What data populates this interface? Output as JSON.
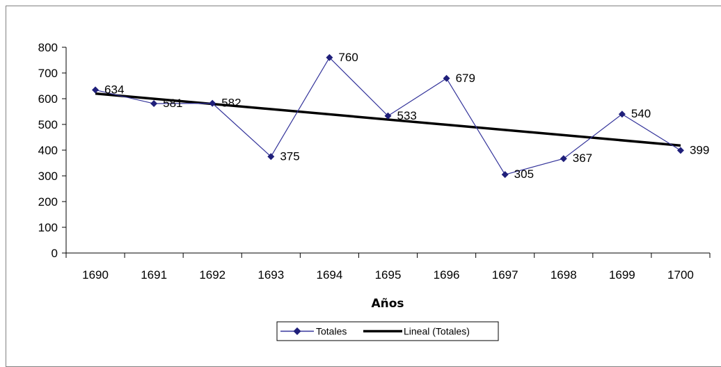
{
  "chart_data": {
    "type": "line",
    "title": "",
    "xlabel": "Años",
    "ylabel": "",
    "ylim": [
      0,
      800
    ],
    "yticks": [
      "0",
      "100",
      "200",
      "300",
      "400",
      "500",
      "600",
      "700",
      "800"
    ],
    "categories": [
      "1690",
      "1691",
      "1692",
      "1693",
      "1694",
      "1695",
      "1696",
      "1697",
      "1698",
      "1699",
      "1700"
    ],
    "series": [
      {
        "name": "Totales",
        "values": [
          634,
          581,
          582,
          375,
          760,
          533,
          679,
          305,
          367,
          540,
          399
        ],
        "color": "#33339a",
        "marker": "diamond",
        "marker_color": "#1f1f7a",
        "data_labels": [
          "634",
          "581",
          "582",
          "375",
          "760",
          "533",
          "679",
          "305",
          "367",
          "540",
          "399"
        ]
      },
      {
        "name": "Lineal (Totales)",
        "kind": "linear-trendline",
        "start_value": 620,
        "end_value": 418,
        "color": "#000000"
      }
    ],
    "grid": false,
    "legend_position": "bottom"
  }
}
